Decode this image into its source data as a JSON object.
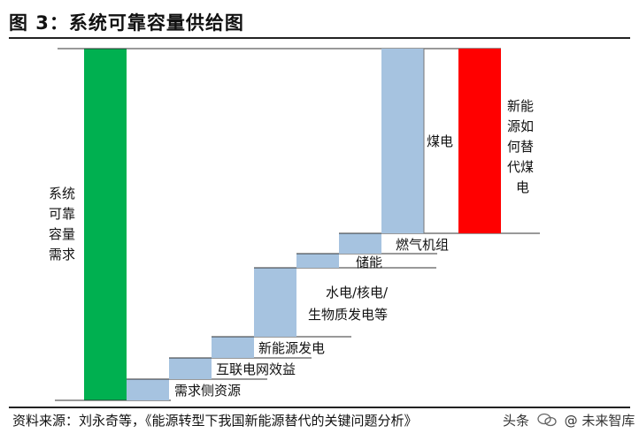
{
  "title": "图 3：系统可靠容量供给图",
  "source": "资料来源：刘永奇等，《能源转型下我国新能源替代的关键问题分析》",
  "watermark": {
    "prefix": "头条",
    "at": "@",
    "name": "未来智库"
  },
  "labels": {
    "demand": [
      "系统",
      "可靠",
      "容量",
      "需求"
    ],
    "demand_side": "需求侧资源",
    "interconnect": "互联电网效益",
    "new_energy_gen": "新能源发电",
    "hydro_nuclear": [
      "水电/核电/",
      "生物质发电等"
    ],
    "storage": "储能",
    "gas": "燃气机组",
    "coal": "煤电",
    "replace": [
      "新能",
      "源如",
      "何替",
      "代煤",
      "电"
    ]
  },
  "colors": {
    "demand": "#00b050",
    "supply": "#a6c3e0",
    "replace": "#ff0000",
    "line": "#333333"
  }
}
